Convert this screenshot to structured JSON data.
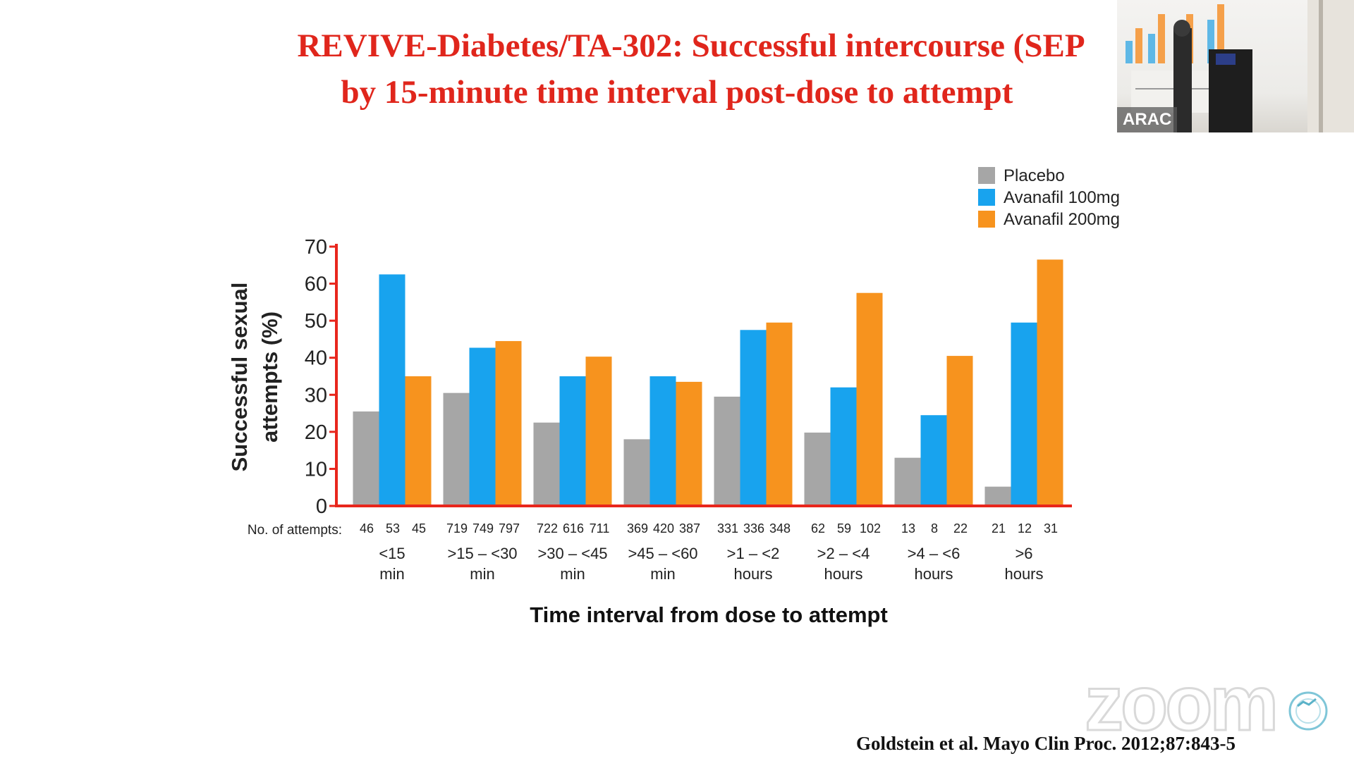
{
  "slide": {
    "title_line1": "REVIVE-Diabetes/TA-302: Successful intercourse (SEP",
    "title_line2": "by 15-minute time interval post-dose to attempt",
    "citation": "Goldstein et al. Mayo Clin Proc. 2012;87:843-5",
    "title_color": "#e0261c"
  },
  "overlay": {
    "zoom_watermark": "zoom",
    "video_participant_label": "ARAC"
  },
  "chart_data": {
    "type": "bar",
    "ylabel_line1": "Successful sexual",
    "ylabel_line2": "attempts (%)",
    "xlabel": "Time interval from dose to attempt",
    "attempts_label": "No. of attempts:",
    "ylim": [
      0,
      70
    ],
    "yticks": [
      0,
      10,
      20,
      30,
      40,
      50,
      60,
      70
    ],
    "legend_position": "top-right",
    "axis_color": "#e8261c",
    "categories": [
      {
        "line1": "<15",
        "line2": "min"
      },
      {
        "line1": ">15 – <30",
        "line2": "min"
      },
      {
        "line1": ">30 – <45",
        "line2": "min"
      },
      {
        "line1": ">45 – <60",
        "line2": "min"
      },
      {
        "line1": ">1 – <2",
        "line2": "hours"
      },
      {
        "line1": ">2 – <4",
        "line2": "hours"
      },
      {
        "line1": ">4 – <6",
        "line2": "hours"
      },
      {
        "line1": ">6",
        "line2": "hours"
      }
    ],
    "series": [
      {
        "name": "Placebo",
        "color": "#a6a6a6",
        "values": [
          25.5,
          30.5,
          22.5,
          18,
          29.5,
          19.8,
          13,
          5.2
        ],
        "attempts": [
          "46",
          "719",
          "722",
          "369",
          "331",
          "62",
          "13",
          "21"
        ]
      },
      {
        "name": "Avanafil 100mg",
        "color": "#18a3ee",
        "values": [
          62.5,
          42.7,
          35,
          35,
          47.5,
          32,
          24.5,
          49.5
        ],
        "attempts": [
          "53",
          "749",
          "616",
          "420",
          "336",
          "59",
          "8",
          "12"
        ]
      },
      {
        "name": "Avanafil 200mg",
        "color": "#f7931e",
        "values": [
          35,
          44.5,
          40.3,
          33.5,
          49.5,
          57.5,
          40.5,
          66.5
        ],
        "attempts": [
          "45",
          "797",
          "711",
          "387",
          "348",
          "102",
          "22",
          "31"
        ]
      }
    ]
  }
}
